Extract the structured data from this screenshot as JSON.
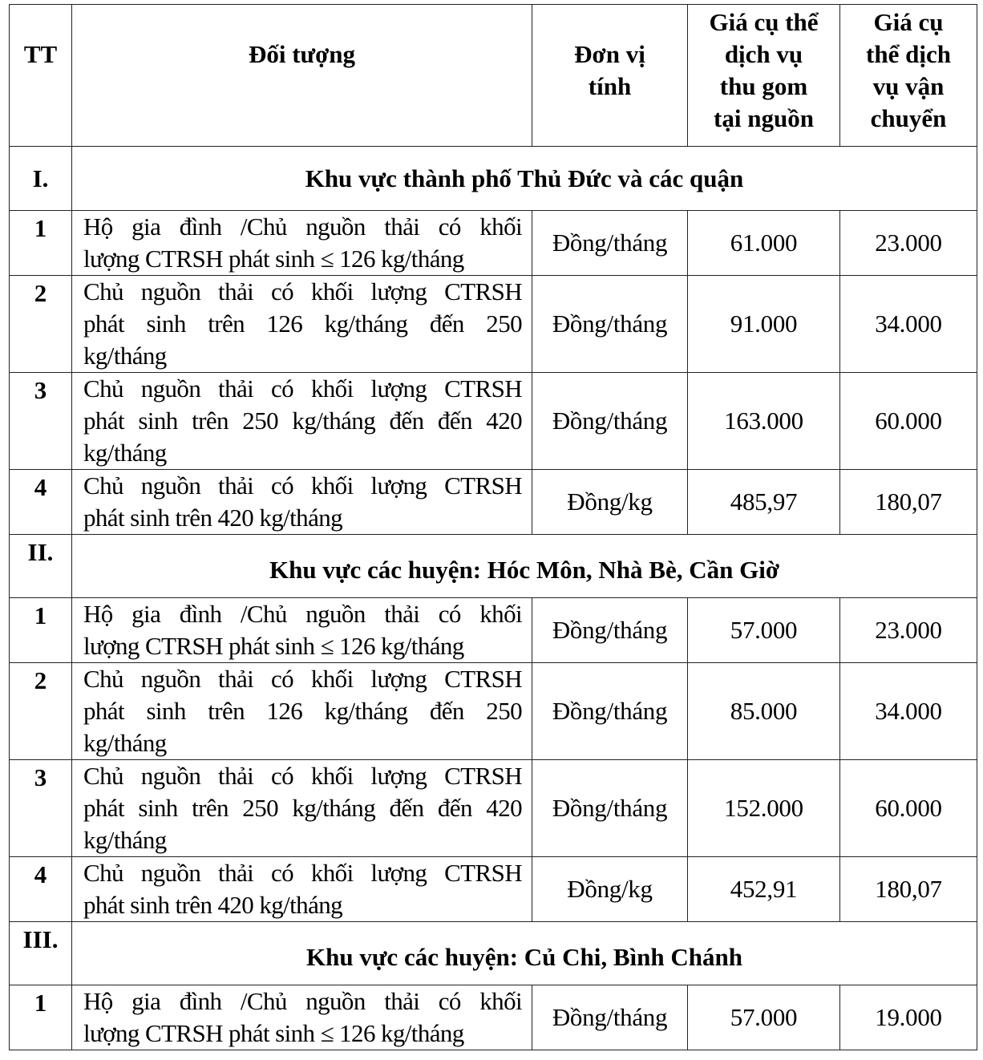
{
  "header": {
    "tt": "TT",
    "subject": "Đối tượng",
    "unit": [
      "Đơn vị",
      "tính"
    ],
    "collection_price": [
      "Giá cụ thể",
      "dịch vụ",
      "thu gom",
      "tại nguồn"
    ],
    "transport_price": [
      "Giá cụ",
      "thể dịch",
      "vụ vận",
      "chuyển"
    ]
  },
  "sections": [
    {
      "roman": "I.",
      "title": "Khu vực thành phố Thủ Đức và các quận",
      "rows": [
        {
          "tt": "1",
          "lines": [
            "Hộ gia đình /Chủ nguồn thải có khối",
            "lượng CTRSH phát sinh ≤ 126 kg/tháng"
          ],
          "unit": "Đồng/tháng",
          "collection": "61.000",
          "transport": "23.000"
        },
        {
          "tt": "2",
          "lines": [
            "Chủ nguồn thải có khối lượng CTRSH",
            "phát sinh trên 126 kg/tháng đến 250",
            "kg/tháng"
          ],
          "unit": "Đồng/tháng",
          "collection": "91.000",
          "transport": "34.000"
        },
        {
          "tt": "3",
          "lines": [
            "Chủ nguồn thải có khối lượng CTRSH",
            "phát sinh trên 250 kg/tháng đến đến 420",
            "kg/tháng"
          ],
          "unit": "Đồng/tháng",
          "collection": "163.000",
          "transport": "60.000"
        },
        {
          "tt": "4",
          "lines": [
            "Chủ nguồn thải có khối lượng CTRSH",
            "phát sinh trên 420 kg/tháng"
          ],
          "unit": "Đồng/kg",
          "collection": "485,97",
          "transport": "180,07"
        }
      ]
    },
    {
      "roman": "II.",
      "title": "Khu vực các huyện: Hóc Môn, Nhà Bè, Cần Giờ",
      "rows": [
        {
          "tt": "1",
          "lines": [
            "Hộ gia đình /Chủ nguồn thải có khối",
            "lượng CTRSH phát sinh ≤ 126 kg/tháng"
          ],
          "unit": "Đồng/tháng",
          "collection": "57.000",
          "transport": "23.000"
        },
        {
          "tt": "2",
          "lines": [
            "Chủ nguồn thải có khối lượng CTRSH",
            "phát sinh trên 126 kg/tháng đến 250",
            "kg/tháng"
          ],
          "unit": "Đồng/tháng",
          "collection": "85.000",
          "transport": "34.000"
        },
        {
          "tt": "3",
          "lines": [
            "Chủ nguồn thải có khối lượng CTRSH",
            "phát sinh trên 250 kg/tháng đến đến 420",
            "kg/tháng"
          ],
          "unit": "Đồng/tháng",
          "collection": "152.000",
          "transport": "60.000"
        },
        {
          "tt": "4",
          "lines": [
            "Chủ nguồn thải có khối lượng CTRSH",
            "phát sinh trên 420 kg/tháng"
          ],
          "unit": "Đồng/kg",
          "collection": "452,91",
          "transport": "180,07"
        }
      ]
    },
    {
      "roman": "III.",
      "title": "Khu vực các huyện: Củ Chi, Bình Chánh",
      "rows": [
        {
          "tt": "1",
          "lines": [
            "Hộ gia đình /Chủ nguồn thải có khối",
            "lượng CTRSH phát sinh ≤ 126 kg/tháng"
          ],
          "unit": "Đồng/tháng",
          "collection": "57.000",
          "transport": "19.000"
        }
      ]
    }
  ]
}
